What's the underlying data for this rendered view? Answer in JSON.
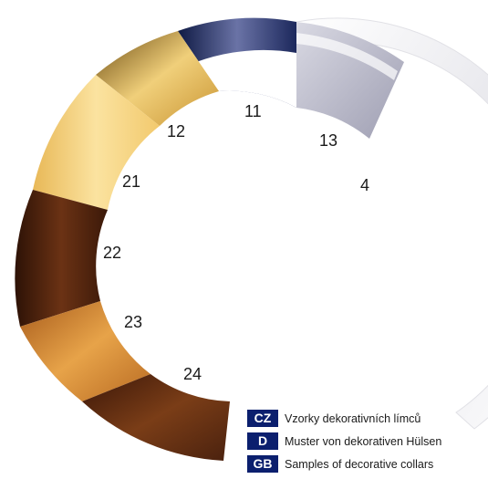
{
  "ring_labels": {
    "n11": "11",
    "n12": "12",
    "n13": "13",
    "n4": "4",
    "n21": "21",
    "n22": "22",
    "n23": "23",
    "n24": "24"
  },
  "legend": [
    {
      "code": "CZ",
      "text": "Vzorky dekorativních límců"
    },
    {
      "code": "D",
      "text": "Muster von dekorativen Hülsen"
    },
    {
      "code": "GB",
      "text": "Samples of decorative collars"
    }
  ],
  "colors": {
    "badge": "#0b1f6e",
    "ring_white": "#f2f2f4",
    "ring_silver": "#b9b9c8",
    "ring_blue": "#1f2a5a",
    "ring_gold": "#e1b24b",
    "ring_light_wood": "#f3d27c",
    "ring_dark_wood": "#4a210e",
    "ring_mid_wood": "#c8782a",
    "ring_dark_wood_2": "#5a2a10"
  }
}
